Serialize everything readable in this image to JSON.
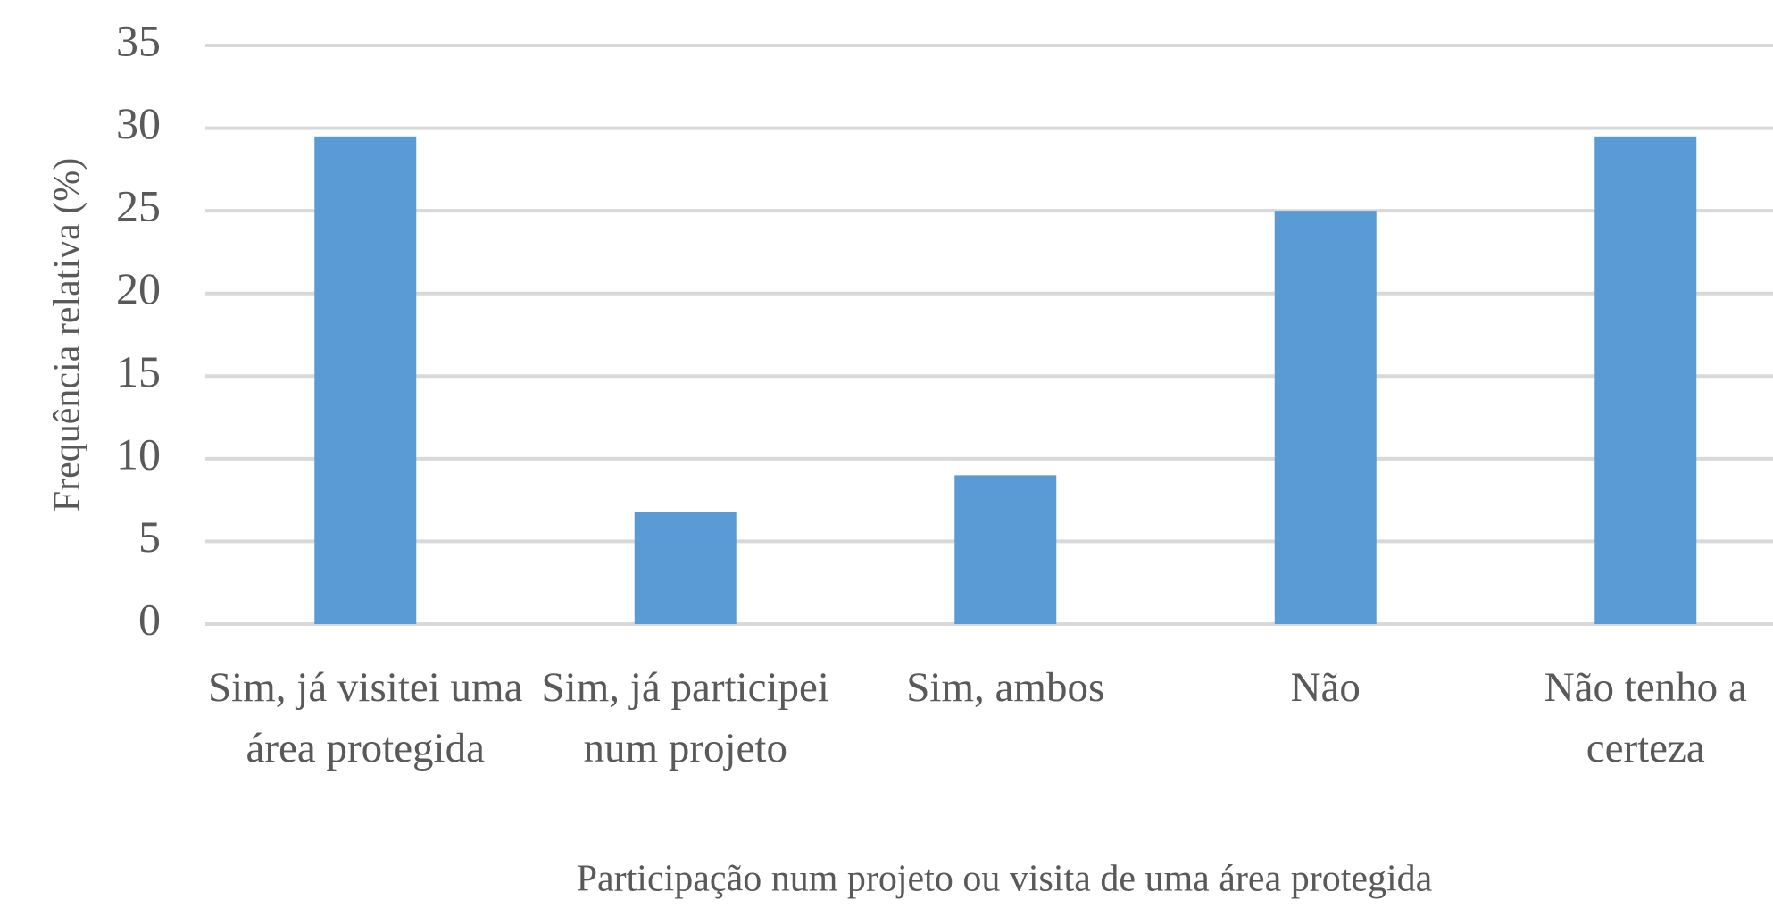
{
  "chart_data": {
    "type": "bar",
    "x_label": "Participação num projeto ou visita de uma área protegida",
    "y_label": "Frequência relativa  (%)",
    "categories": [
      "Sim, já visitei uma área protegida",
      "Sim, já participei num projeto",
      "Sim, ambos",
      "Não",
      "Não tenho a certeza"
    ],
    "values": [
      29.5,
      6.8,
      9,
      25,
      29.5
    ],
    "color": "#5b9bd5",
    "ylim": [
      0,
      35
    ],
    "yticks": [
      0,
      5,
      10,
      15,
      20,
      25,
      30,
      35
    ],
    "grid": true
  }
}
